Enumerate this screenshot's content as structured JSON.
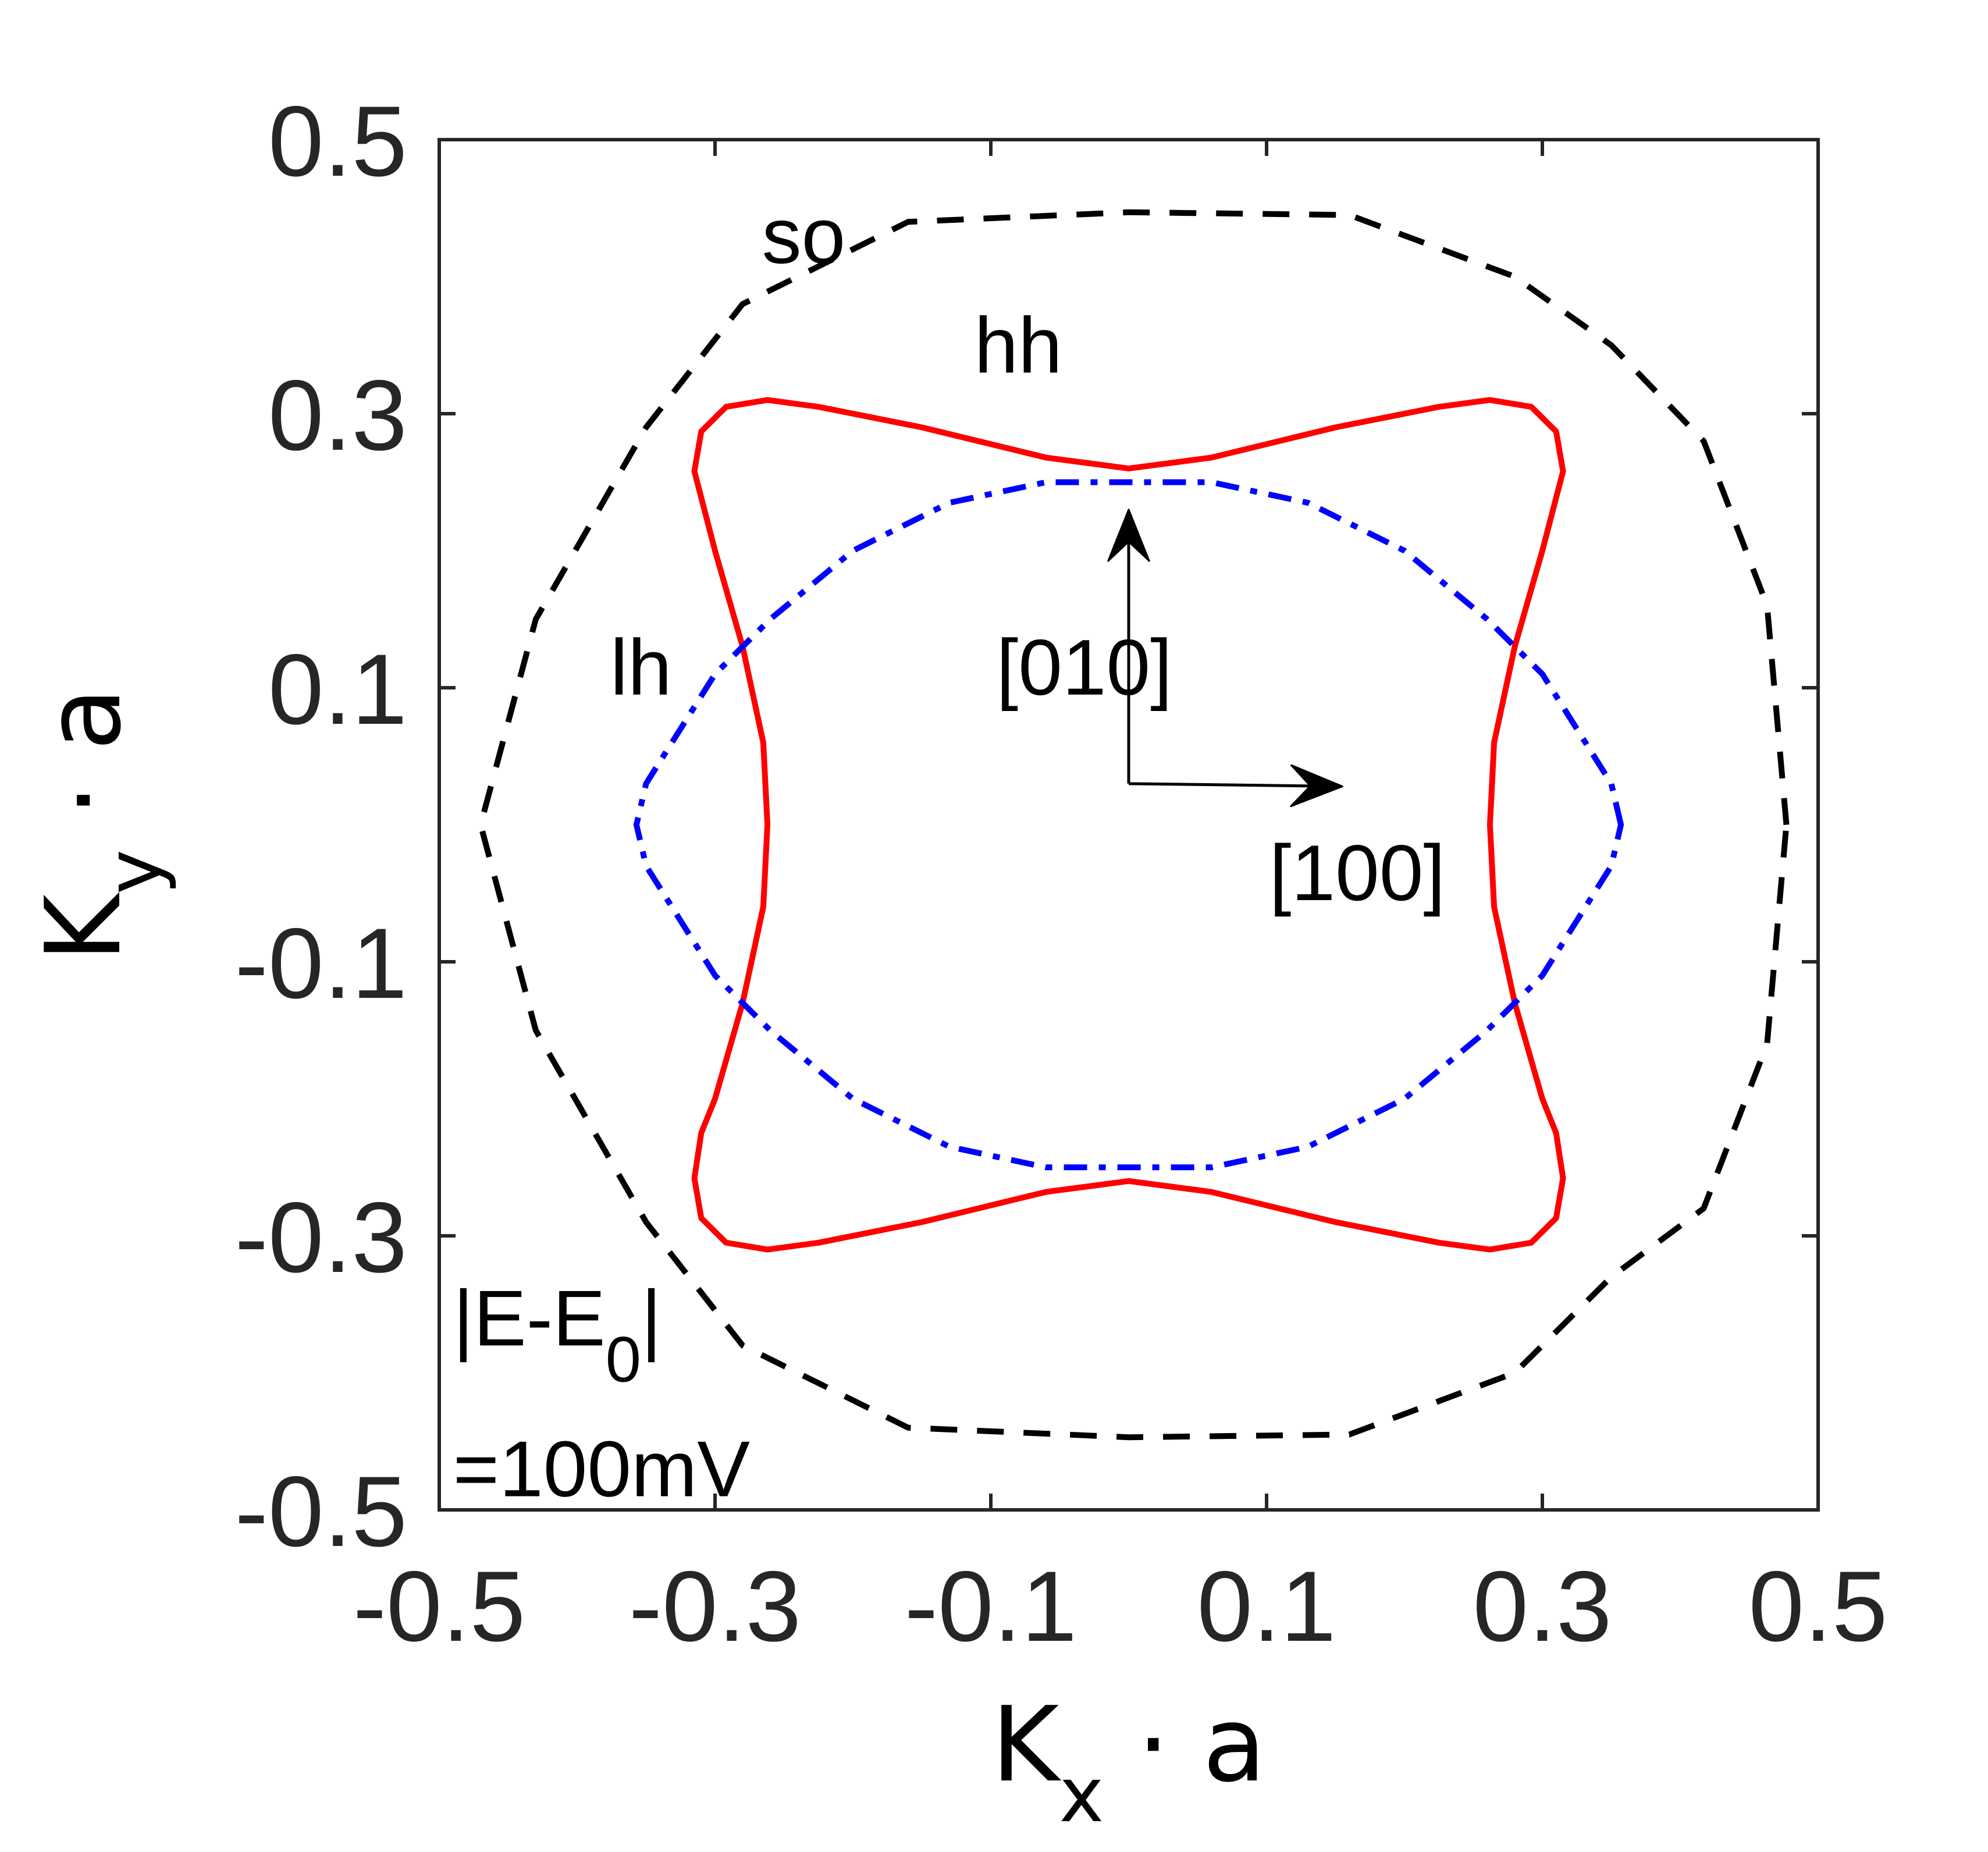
{
  "chart_data": {
    "type": "line",
    "title": "",
    "xlabel": {
      "base": "K",
      "sub": "x",
      "rest": " · a"
    },
    "ylabel": {
      "base": "K",
      "sub": "y",
      "rest": " · a"
    },
    "xlim": [
      -0.5,
      0.5
    ],
    "ylim": [
      -0.5,
      0.5
    ],
    "xticks": [
      -0.5,
      -0.3,
      -0.1,
      0.1,
      0.3,
      0.5
    ],
    "yticks": [
      -0.5,
      -0.3,
      -0.1,
      0.1,
      0.3,
      0.5
    ],
    "xtick_labels": [
      "-0.5",
      "-0.3",
      "-0.1",
      "0.1",
      "0.3",
      "0.5"
    ],
    "ytick_labels": [
      "-0.5",
      "-0.3",
      "-0.1",
      "0.1",
      "0.3",
      "0.5"
    ],
    "grid": false,
    "series": [
      {
        "name": "so",
        "color": "#000000",
        "dash": "dashed",
        "points": [
          [
            0.477,
            0.0
          ],
          [
            0.463,
            0.16
          ],
          [
            0.417,
            0.28
          ],
          [
            0.35,
            0.35
          ],
          [
            0.28,
            0.4
          ],
          [
            0.16,
            0.445
          ],
          [
            0.0,
            0.447
          ],
          [
            -0.16,
            0.44
          ],
          [
            -0.28,
            0.38
          ],
          [
            -0.35,
            0.29
          ],
          [
            -0.43,
            0.15
          ],
          [
            -0.47,
            0.0
          ],
          [
            -0.43,
            -0.15
          ],
          [
            -0.35,
            -0.29
          ],
          [
            -0.28,
            -0.38
          ],
          [
            -0.16,
            -0.44
          ],
          [
            0.0,
            -0.447
          ],
          [
            0.16,
            -0.445
          ],
          [
            0.28,
            -0.4
          ],
          [
            0.35,
            -0.33
          ],
          [
            0.417,
            -0.28
          ],
          [
            0.463,
            -0.16
          ],
          [
            0.477,
            0.0
          ]
        ]
      },
      {
        "name": "hh",
        "color": "#ff0000",
        "dash": "solid",
        "points": [
          [
            0.262,
            0.0
          ],
          [
            0.265,
            0.06
          ],
          [
            0.28,
            0.13
          ],
          [
            0.3,
            0.2
          ],
          [
            0.315,
            0.258
          ],
          [
            0.31,
            0.287
          ],
          [
            0.292,
            0.305
          ],
          [
            0.262,
            0.31
          ],
          [
            0.225,
            0.305
          ],
          [
            0.15,
            0.29
          ],
          [
            0.06,
            0.268
          ],
          [
            0.0,
            0.26
          ],
          [
            -0.06,
            0.268
          ],
          [
            -0.15,
            0.29
          ],
          [
            -0.225,
            0.305
          ],
          [
            -0.262,
            0.31
          ],
          [
            -0.292,
            0.305
          ],
          [
            -0.31,
            0.287
          ],
          [
            -0.315,
            0.258
          ],
          [
            -0.3,
            0.2
          ],
          [
            -0.28,
            0.13
          ],
          [
            -0.265,
            0.06
          ],
          [
            -0.262,
            0.0
          ],
          [
            -0.265,
            -0.06
          ],
          [
            -0.28,
            -0.13
          ],
          [
            -0.3,
            -0.2
          ],
          [
            -0.31,
            -0.225
          ],
          [
            -0.315,
            -0.258
          ],
          [
            -0.31,
            -0.287
          ],
          [
            -0.292,
            -0.305
          ],
          [
            -0.262,
            -0.31
          ],
          [
            -0.225,
            -0.305
          ],
          [
            -0.15,
            -0.29
          ],
          [
            -0.06,
            -0.268
          ],
          [
            0.0,
            -0.26
          ],
          [
            0.06,
            -0.268
          ],
          [
            0.15,
            -0.29
          ],
          [
            0.225,
            -0.305
          ],
          [
            0.262,
            -0.31
          ],
          [
            0.292,
            -0.305
          ],
          [
            0.31,
            -0.287
          ],
          [
            0.315,
            -0.258
          ],
          [
            0.31,
            -0.225
          ],
          [
            0.3,
            -0.2
          ],
          [
            0.28,
            -0.13
          ],
          [
            0.265,
            -0.06
          ],
          [
            0.262,
            0.0
          ]
        ]
      },
      {
        "name": "lh",
        "color": "#0000ff",
        "dash": "dashdot",
        "points": [
          [
            0.357,
            0.0
          ],
          [
            0.35,
            0.03
          ],
          [
            0.3,
            0.11
          ],
          [
            0.26,
            0.15
          ],
          [
            0.2,
            0.2
          ],
          [
            0.13,
            0.235
          ],
          [
            0.06,
            0.25
          ],
          [
            0.0,
            0.25
          ],
          [
            -0.06,
            0.25
          ],
          [
            -0.13,
            0.235
          ],
          [
            -0.2,
            0.2
          ],
          [
            -0.26,
            0.15
          ],
          [
            -0.3,
            0.11
          ],
          [
            -0.35,
            0.03
          ],
          [
            -0.357,
            0.0
          ],
          [
            -0.35,
            -0.03
          ],
          [
            -0.3,
            -0.11
          ],
          [
            -0.26,
            -0.15
          ],
          [
            -0.2,
            -0.2
          ],
          [
            -0.13,
            -0.235
          ],
          [
            -0.06,
            -0.25
          ],
          [
            0.0,
            -0.25
          ],
          [
            0.06,
            -0.25
          ],
          [
            0.13,
            -0.235
          ],
          [
            0.2,
            -0.2
          ],
          [
            0.26,
            -0.15
          ],
          [
            0.3,
            -0.11
          ],
          [
            0.35,
            -0.03
          ],
          [
            0.357,
            0.0
          ]
        ]
      }
    ],
    "arrows": [
      {
        "name": "[100]",
        "from": [
          0.0,
          0.03
        ],
        "to": [
          0.155,
          0.028
        ]
      },
      {
        "name": "[010]",
        "from": [
          0.0,
          0.03
        ],
        "to": [
          0.0,
          0.23
        ]
      }
    ],
    "annotations": [
      {
        "text": "so",
        "x": -0.266,
        "y": 0.41,
        "kind": "plain"
      },
      {
        "text": "hh",
        "x": -0.112,
        "y": 0.33,
        "kind": "plain"
      },
      {
        "text": "lh",
        "x": -0.376,
        "y": 0.095,
        "kind": "plain"
      },
      {
        "text": "[010]",
        "x": -0.096,
        "y": 0.095,
        "kind": "plain"
      },
      {
        "text": "[100]",
        "x": 0.102,
        "y": -0.055,
        "kind": "plain"
      },
      {
        "text": "|E-E",
        "sub": "0",
        "tail": "|",
        "x": -0.49,
        "y": -0.38,
        "kind": "sub"
      },
      {
        "text": "=100mV",
        "x": -0.49,
        "y": -0.49,
        "kind": "plain"
      }
    ]
  }
}
